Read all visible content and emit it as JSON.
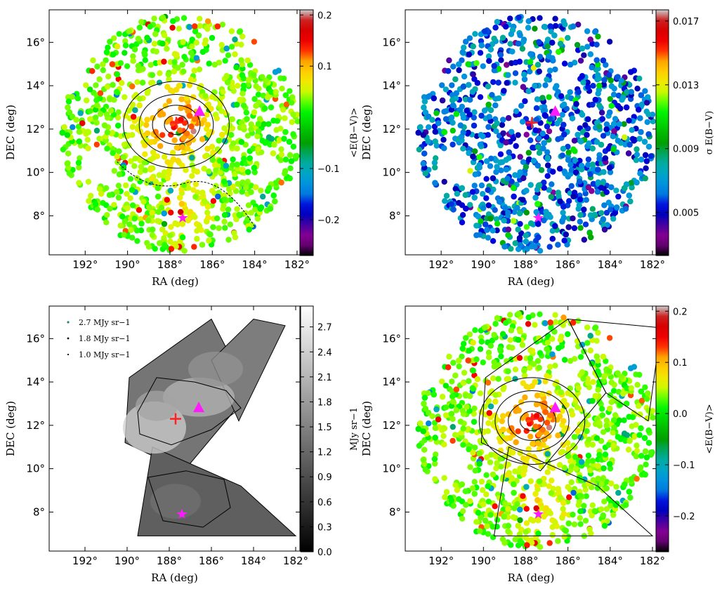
{
  "chart_data": [
    {
      "type": "scatter",
      "panel": "top-left",
      "xlabel": "RA (deg)",
      "ylabel": "DEC (deg)",
      "xlim": [
        193.7,
        181.8
      ],
      "ylim": [
        6.2,
        17.5
      ],
      "x_tick_values": [
        192,
        190,
        188,
        186,
        184,
        182
      ],
      "x_tick_labels": [
        "192°",
        "190°",
        "188°",
        "186°",
        "184°",
        "182°"
      ],
      "y_tick_values": [
        8,
        10,
        12,
        14,
        16
      ],
      "y_tick_labels": [
        "8°",
        "10°",
        "12°",
        "14°",
        "16°"
      ],
      "colorbar": {
        "label": "<E(B−V)>",
        "range": [
          -0.27,
          0.21
        ],
        "tick_values": [
          0.2,
          0.1,
          -0.1,
          -0.2
        ],
        "tick_labels": [
          "0.2",
          "0.1",
          "−0.1",
          "−0.2"
        ],
        "colormap": "spectral"
      },
      "contours": "black",
      "markers": [
        {
          "symbol": "plus",
          "ra": 187.7,
          "dec": 12.3,
          "color": "#ff2020"
        },
        {
          "symbol": "triangle",
          "ra": 186.6,
          "dec": 12.8,
          "color": "#ff1aff"
        },
        {
          "symbol": "star",
          "ra": 187.4,
          "dec": 7.9,
          "color": "#ff1aff"
        }
      ]
    },
    {
      "type": "scatter",
      "panel": "top-right",
      "xlabel": "RA (deg)",
      "ylabel": "DEC (deg)",
      "xlim": [
        193.7,
        181.8
      ],
      "ylim": [
        6.2,
        17.5
      ],
      "x_tick_values": [
        192,
        190,
        188,
        186,
        184,
        182
      ],
      "x_tick_labels": [
        "192°",
        "190°",
        "188°",
        "186°",
        "184°",
        "182°"
      ],
      "y_tick_values": [
        8,
        10,
        12,
        14,
        16
      ],
      "y_tick_labels": [
        "8°",
        "10°",
        "12°",
        "14°",
        "16°"
      ],
      "colorbar": {
        "label": "σ E(B−V)",
        "range": [
          0.0023,
          0.0177
        ],
        "tick_values": [
          0.017,
          0.013,
          0.009,
          0.005
        ],
        "tick_labels": [
          "0.017",
          "0.013",
          "0.009",
          "0.005"
        ],
        "colormap": "spectral"
      },
      "markers": [
        {
          "symbol": "plus",
          "ra": 187.7,
          "dec": 12.3,
          "color": "#ff2020"
        },
        {
          "symbol": "triangle",
          "ra": 186.6,
          "dec": 12.8,
          "color": "#ff1aff"
        },
        {
          "symbol": "star",
          "ra": 187.4,
          "dec": 7.9,
          "color": "#ff1aff"
        }
      ]
    },
    {
      "type": "heatmap",
      "panel": "bottom-left",
      "xlabel": "RA (deg)",
      "ylabel": "DEC (deg)",
      "xlim": [
        193.7,
        181.8
      ],
      "ylim": [
        6.2,
        17.5
      ],
      "x_tick_values": [
        192,
        190,
        188,
        186,
        184,
        182
      ],
      "x_tick_labels": [
        "192°",
        "190°",
        "188°",
        "186°",
        "184°",
        "182°"
      ],
      "y_tick_values": [
        8,
        10,
        12,
        14,
        16
      ],
      "y_tick_labels": [
        "8°",
        "10°",
        "12°",
        "14°",
        "16°"
      ],
      "colorbar": {
        "label": "MJy sr−1",
        "range": [
          0.0,
          2.95
        ],
        "tick_values": [
          2.7,
          2.4,
          2.1,
          1.8,
          1.5,
          1.2,
          0.9,
          0.6,
          0.3,
          0.0
        ],
        "tick_labels": [
          "2.7",
          "2.4",
          "2.1",
          "1.8",
          "1.5",
          "1.2",
          "0.9",
          "0.6",
          "0.3",
          "0.0"
        ],
        "colormap": "gray"
      },
      "legend": {
        "placement": "top-left",
        "entries": [
          "2.7 MJy sr−1",
          "1.8 MJy sr−1",
          "1.0 MJy sr−1"
        ]
      },
      "markers": [
        {
          "symbol": "plus",
          "ra": 187.7,
          "dec": 12.3,
          "color": "#ff2020"
        },
        {
          "symbol": "triangle",
          "ra": 186.6,
          "dec": 12.8,
          "color": "#ff1aff"
        },
        {
          "symbol": "star",
          "ra": 187.4,
          "dec": 7.9,
          "color": "#ff1aff"
        }
      ]
    },
    {
      "type": "scatter",
      "panel": "bottom-right",
      "xlabel": "RA (deg)",
      "ylabel": "DEC (deg)",
      "xlim": [
        193.7,
        181.8
      ],
      "ylim": [
        6.2,
        17.5
      ],
      "x_tick_values": [
        192,
        190,
        188,
        186,
        184,
        182
      ],
      "x_tick_labels": [
        "192°",
        "190°",
        "188°",
        "186°",
        "184°",
        "182°"
      ],
      "y_tick_values": [
        8,
        10,
        12,
        14,
        16
      ],
      "y_tick_labels": [
        "8°",
        "10°",
        "12°",
        "14°",
        "16°"
      ],
      "colorbar": {
        "label": "<E(B−V)>",
        "range": [
          -0.27,
          0.21
        ],
        "tick_values": [
          0.2,
          0.1,
          0.0,
          -0.1,
          -0.2
        ],
        "tick_labels": [
          "0.2",
          "0.1",
          "0.0",
          "−0.1",
          "−0.2"
        ],
        "colormap": "spectral"
      },
      "contours": "black",
      "markers": [
        {
          "symbol": "plus",
          "ra": 187.7,
          "dec": 12.3,
          "color": "#ff2020"
        },
        {
          "symbol": "triangle",
          "ra": 186.6,
          "dec": 12.8,
          "color": "#ff1aff"
        },
        {
          "symbol": "star",
          "ra": 187.4,
          "dec": 7.9,
          "color": "#ff1aff"
        }
      ]
    }
  ]
}
